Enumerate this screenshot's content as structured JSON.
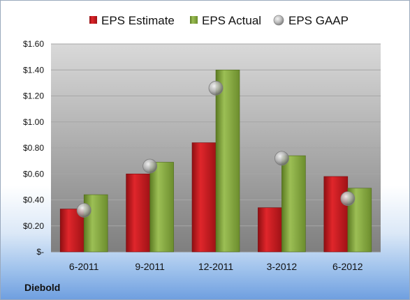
{
  "company": "Diebold",
  "legend": {
    "estimate": "EPS Estimate",
    "actual": "EPS Actual",
    "gaap": "EPS GAAP"
  },
  "colors": {
    "estimate": "#c8161d",
    "actual": "#7ea03a",
    "gaap": "#a6a6a6",
    "plot_top": "#d9d9d9",
    "plot_bottom": "#7f7f7f"
  },
  "chart_data": {
    "type": "bar",
    "categories": [
      "6-2011",
      "9-2011",
      "12-2011",
      "3-2012",
      "6-2012"
    ],
    "series": [
      {
        "name": "EPS Estimate",
        "type": "bar",
        "values": [
          0.33,
          0.6,
          0.84,
          0.34,
          0.58
        ]
      },
      {
        "name": "EPS Actual",
        "type": "bar",
        "values": [
          0.44,
          0.69,
          1.4,
          0.74,
          0.49
        ]
      },
      {
        "name": "EPS GAAP",
        "type": "scatter",
        "values": [
          0.32,
          0.66,
          1.26,
          0.72,
          0.41
        ]
      }
    ],
    "yticks": [
      "$-",
      "$0.20",
      "$0.40",
      "$0.60",
      "$0.80",
      "$1.00",
      "$1.20",
      "$1.40",
      "$1.60"
    ],
    "ylim": [
      0,
      1.6
    ],
    "grid": true,
    "legend_position": "top"
  }
}
